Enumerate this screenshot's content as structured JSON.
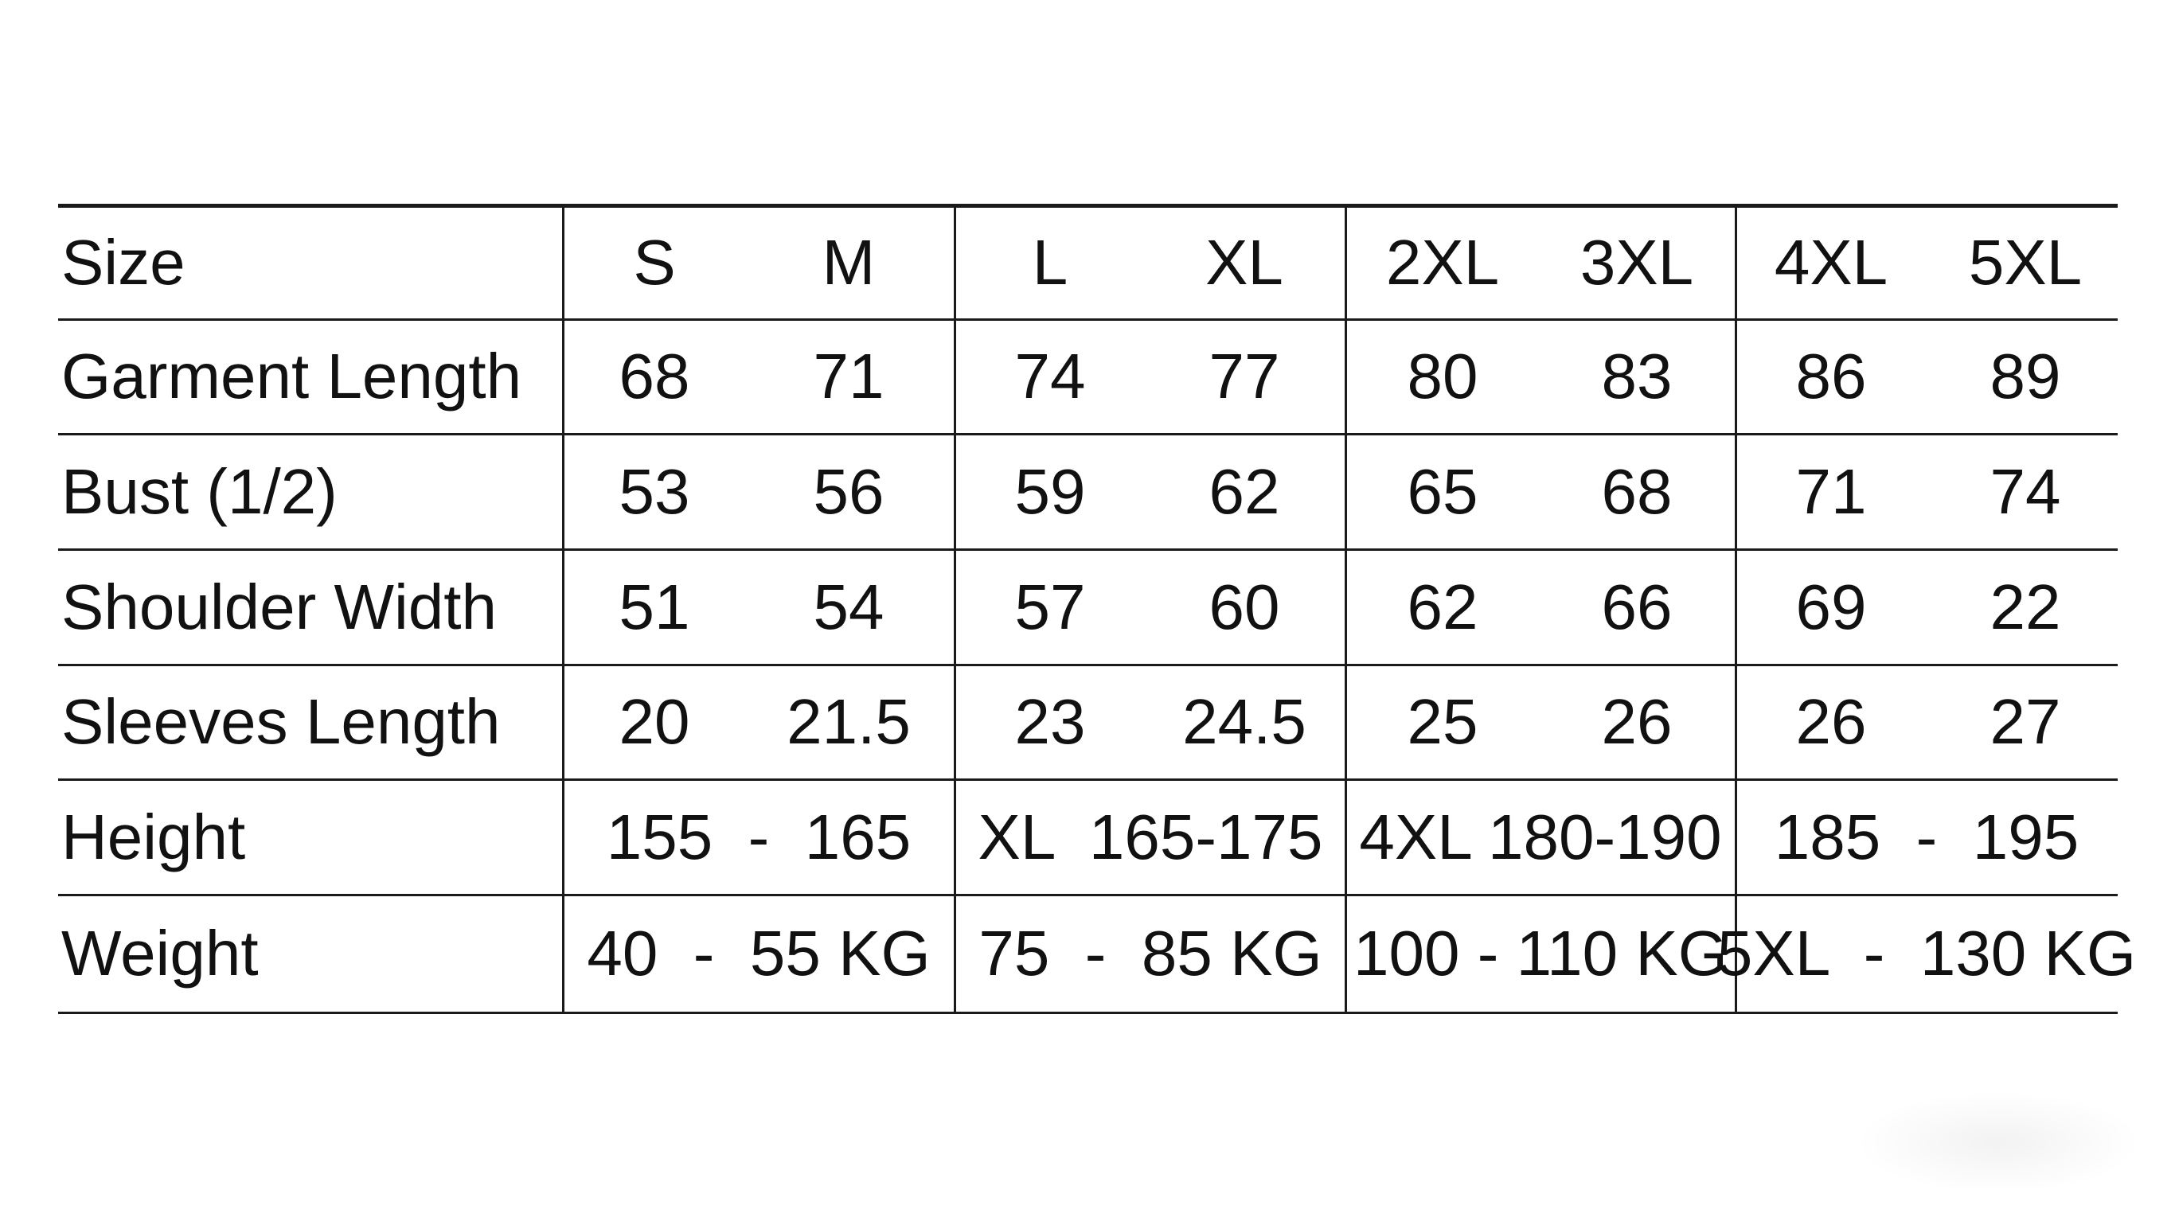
{
  "size_chart": {
    "header": {
      "label": "Size",
      "sizes": [
        "S",
        "M",
        "L",
        "XL",
        "2XL",
        "3XL",
        "4XL",
        "5XL"
      ]
    },
    "rows": [
      {
        "label": "Garment Length",
        "values": [
          "68",
          "71",
          "74",
          "77",
          "80",
          "83",
          "86",
          "89"
        ]
      },
      {
        "label": "Bust (1/2)",
        "values": [
          "53",
          "56",
          "59",
          "62",
          "65",
          "68",
          "71",
          "74"
        ]
      },
      {
        "label": "Shoulder Width",
        "values": [
          "51",
          "54",
          "57",
          "60",
          "62",
          "66",
          "69",
          "22"
        ]
      },
      {
        "label": "Sleeves Length",
        "values": [
          "20",
          "21.5",
          "23",
          "24.5",
          "25",
          "26",
          "26",
          "27"
        ]
      }
    ],
    "group_rows": [
      {
        "label": "Height",
        "values": [
          "155  -  165",
          "XL  165-175",
          "4XL 180-190",
          "185  -  195"
        ]
      },
      {
        "label": "Weight",
        "values": [
          "40  -  55 KG",
          "75  -  85 KG",
          "100 - 110 KG",
          "5XL  -  130 KG"
        ]
      }
    ]
  }
}
